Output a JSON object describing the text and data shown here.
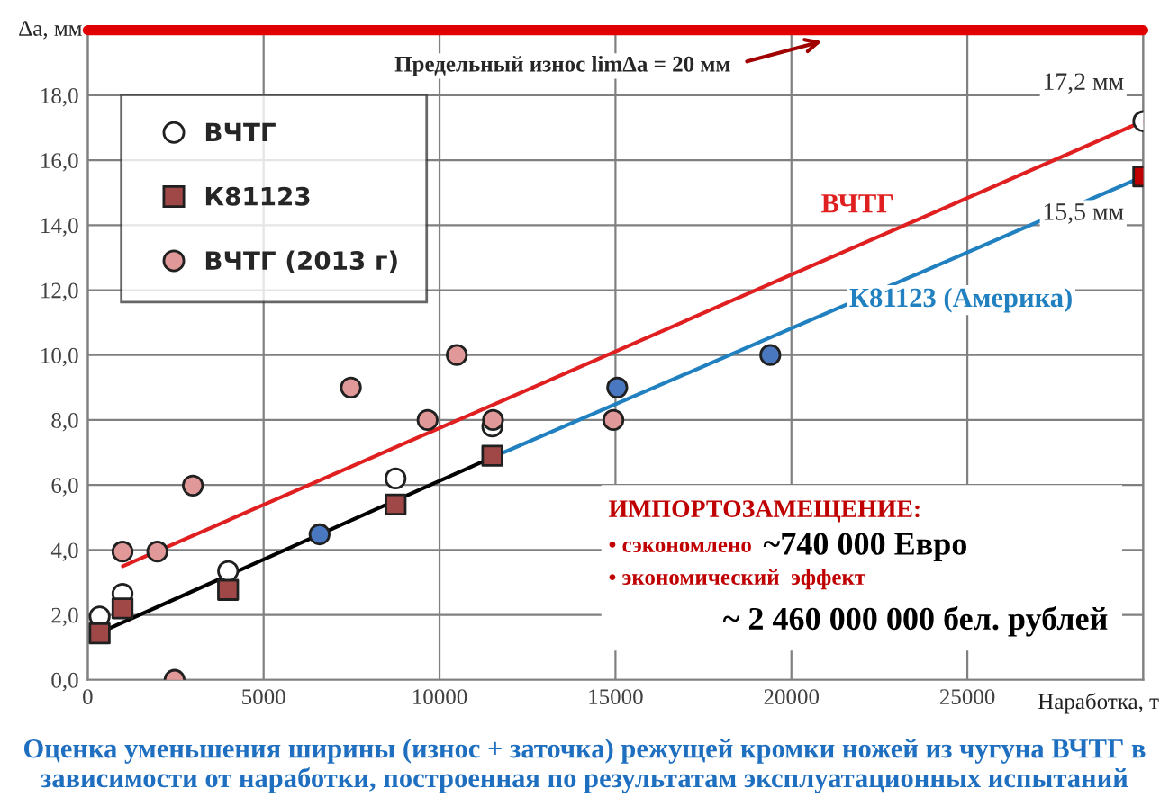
{
  "chart_data": {
    "type": "scatter",
    "title": "Оценка уменьшения ширины (износ + заточка) режущей кромки ножей из чугуна ВЧТГ в зависимости от наработки, построенная по результатам эксплуатационных испытаний",
    "xlabel": "Наработка, т",
    "ylabel": "Δa, мм",
    "xlim": [
      0,
      30000
    ],
    "xticks": [
      0,
      5000,
      10000,
      15000,
      20000,
      25000,
      {
        "value": 30000,
        "label": null
      }
    ],
    "ylim": [
      0,
      20
    ],
    "yticks": [
      {
        "value": 0,
        "label": "0,0"
      },
      {
        "value": 2,
        "label": "2,0"
      },
      {
        "value": 4,
        "label": "4,0"
      },
      {
        "value": 6,
        "label": "6,0"
      },
      {
        "value": 8,
        "label": "8,0"
      },
      {
        "value": 10,
        "label": "10,0"
      },
      {
        "value": 12,
        "label": "12,0"
      },
      {
        "value": 14,
        "label": "14,0"
      },
      {
        "value": 16,
        "label": "16,0"
      },
      {
        "value": 18,
        "label": "18,0"
      }
    ],
    "grid": true,
    "legend": "top left",
    "series": [
      {
        "type": "line",
        "color": "#000000",
        "x": [
          340,
          11500
        ],
        "values": [
          1.45,
          6.85
        ]
      },
      {
        "type": "line",
        "name": "ВЧТГ",
        "color": "#e02020",
        "x": [
          1000,
          30000
        ],
        "values": [
          3.5,
          17.2
        ]
      },
      {
        "type": "line",
        "name": "К81123 (Америка)",
        "color": "#2080c0",
        "x": [
          11500,
          30000
        ],
        "values": [
          6.85,
          15.5
        ]
      },
      {
        "name": "ВЧТГ",
        "marker": "circle",
        "color": "#ffffff",
        "x": [
          340,
          990,
          3990,
          8750,
          11500,
          30000
        ],
        "values": [
          1.95,
          2.65,
          3.35,
          6.2,
          7.8,
          17.2
        ]
      },
      {
        "name": "К81123",
        "marker": "square",
        "color": "#a04848",
        "colors": [
          "#a04848",
          "#a04848",
          "#a04848",
          "#a04848",
          "#a04848",
          "#c00000"
        ],
        "x": [
          340,
          990,
          3990,
          8750,
          11500,
          30000
        ],
        "values": [
          1.43,
          2.2,
          2.77,
          5.4,
          6.9,
          15.5
        ]
      },
      {
        "name": "ВЧТГ (2013 г)",
        "marker": "circle",
        "color": "#e09898",
        "x": [
          990,
          1980,
          2470,
          2990,
          7480,
          9660,
          10490,
          11520,
          14940
        ],
        "values": [
          3.95,
          3.95,
          0,
          5.98,
          9.0,
          8.0,
          10.0,
          8.0,
          8.0
        ]
      },
      {
        "marker": "circle",
        "color": "#4a78c0",
        "x": [
          6590,
          15050,
          19400
        ],
        "values": [
          4.48,
          9.0,
          10.0
        ]
      }
    ],
    "ref_lines": [
      {
        "axis": "y",
        "value": 20,
        "label": "Предельный износ limΔa = 20 мм",
        "color": "#e00000"
      }
    ],
    "annotations": [
      {
        "text": "17,2 мм",
        "x": 30000,
        "y": 17.2
      },
      {
        "text": "15,5 мм",
        "x": 30000,
        "y": 15.5
      },
      "ИМПОРТОЗАМЕЩЕНИЕ:",
      "• сэкономлено",
      "~740 000 Евро",
      "• экономический  эффект",
      "~ 2 460 000 000 бел. рублей"
    ]
  }
}
